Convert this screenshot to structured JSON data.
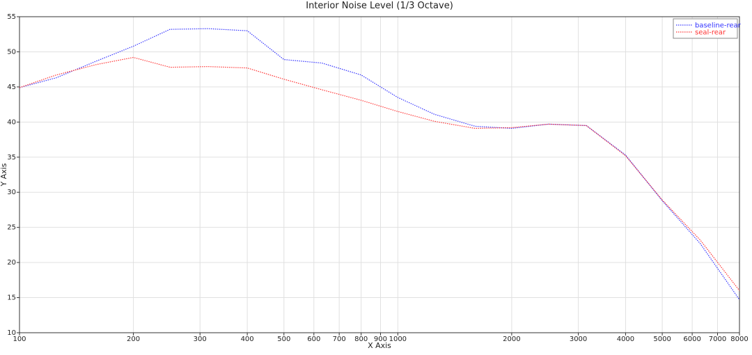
{
  "chart_data": {
    "type": "line",
    "title": "Interior Noise Level (1/3 Octave)",
    "x_label": "X Axis",
    "y_label": "Y Axis",
    "x": [
      100,
      125,
      160,
      200,
      250,
      315,
      400,
      500,
      630,
      800,
      1000,
      1250,
      1600,
      2000,
      2500,
      3150,
      4000,
      5000,
      6300,
      8000
    ],
    "series": [
      {
        "name": "baseline-rear",
        "color": "#3333ff",
        "values": [
          44.9,
          46.3,
          48.7,
          50.8,
          53.2,
          53.3,
          53.0,
          48.9,
          48.4,
          46.7,
          43.5,
          41.1,
          39.4,
          39.1,
          39.7,
          39.5,
          35.3,
          28.8,
          22.7,
          14.7
        ]
      },
      {
        "name": "seal-rear",
        "color": "#ff3333",
        "values": [
          44.9,
          46.7,
          48.2,
          49.2,
          47.8,
          47.9,
          47.7,
          46.1,
          44.6,
          43.1,
          41.5,
          40.1,
          39.1,
          39.2,
          39.7,
          39.5,
          35.2,
          28.9,
          23.2,
          16.0
        ]
      }
    ],
    "xlim": [
      100,
      8000
    ],
    "ylim": [
      10,
      55
    ],
    "xscale": "log",
    "xticks": [
      100,
      200,
      300,
      400,
      500,
      600,
      700,
      800,
      900,
      1000,
      2000,
      3000,
      4000,
      5000,
      6000,
      7000,
      8000
    ],
    "yticks": [
      10,
      15,
      20,
      25,
      30,
      35,
      40,
      45,
      50,
      55
    ],
    "grid": true,
    "legend": "upper right"
  }
}
